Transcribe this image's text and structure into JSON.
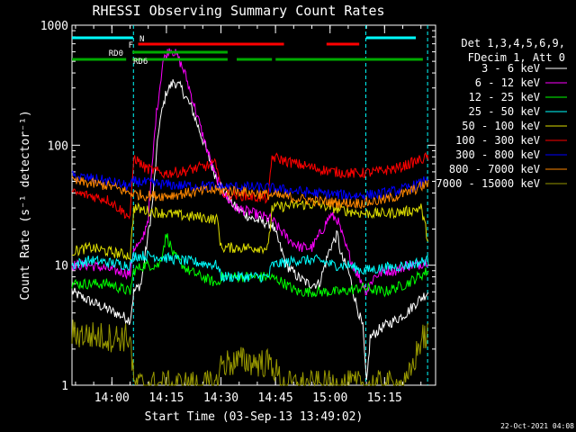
{
  "chart_data": {
    "type": "line",
    "title": "RHESSI Observing Summary Count Rates",
    "xlabel": "Start Time (03-Sep-13 13:49:02)",
    "ylabel": "Count Rate (s⁻¹ detector⁻¹)",
    "yscale": "log",
    "ylim": [
      1,
      1000
    ],
    "xlim_minutes_from_start": [
      0,
      100
    ],
    "x_ticks": [
      {
        "label": "14:00",
        "minute": 10.97
      },
      {
        "label": "14:15",
        "minute": 25.97
      },
      {
        "label": "14:30",
        "minute": 40.97
      },
      {
        "label": "14:45",
        "minute": 55.97
      },
      {
        "label": "15:00",
        "minute": 70.97
      },
      {
        "label": "15:15",
        "minute": 85.97
      }
    ],
    "y_ticks": [
      {
        "label": "1",
        "value": 1
      },
      {
        "label": "10",
        "value": 10
      },
      {
        "label": "100",
        "value": 100
      },
      {
        "label": "1000",
        "value": 1000
      }
    ],
    "legend_header": [
      "Det 1,3,4,5,6,9,",
      "FDecim 1, Att 0"
    ],
    "legend_position": "right",
    "series": [
      {
        "name": "3 - 6 keV",
        "color": "#ffffff",
        "points": [
          [
            0,
            6
          ],
          [
            5,
            5
          ],
          [
            12,
            4
          ],
          [
            16,
            3.5
          ],
          [
            17,
            6
          ],
          [
            19,
            7
          ],
          [
            22,
            30
          ],
          [
            24,
            150
          ],
          [
            26,
            280
          ],
          [
            28,
            340
          ],
          [
            30,
            300
          ],
          [
            33,
            200
          ],
          [
            36,
            110
          ],
          [
            39,
            60
          ],
          [
            42,
            40
          ],
          [
            45,
            30
          ],
          [
            50,
            24
          ],
          [
            55,
            22
          ],
          [
            57,
            15
          ],
          [
            59,
            10
          ],
          [
            62,
            8
          ],
          [
            65,
            7
          ],
          [
            68,
            7
          ],
          [
            71,
            14
          ],
          [
            73,
            18
          ],
          [
            74,
            12
          ],
          [
            76,
            9
          ],
          [
            78,
            5
          ],
          [
            80,
            3
          ],
          [
            81,
            1
          ],
          [
            82,
            2.5
          ],
          [
            85,
            3
          ],
          [
            89,
            3.5
          ],
          [
            92,
            4
          ],
          [
            95,
            5
          ],
          [
            98,
            6
          ]
        ]
      },
      {
        "name": "6 - 12 keV",
        "color": "#ff00ff",
        "points": [
          [
            0,
            10
          ],
          [
            5,
            10
          ],
          [
            12,
            9
          ],
          [
            16,
            8.5
          ],
          [
            17,
            14
          ],
          [
            19,
            15
          ],
          [
            21,
            25
          ],
          [
            23,
            160
          ],
          [
            25,
            500
          ],
          [
            27,
            650
          ],
          [
            29,
            550
          ],
          [
            31,
            400
          ],
          [
            33,
            250
          ],
          [
            36,
            120
          ],
          [
            39,
            60
          ],
          [
            42,
            38
          ],
          [
            45,
            30
          ],
          [
            50,
            27
          ],
          [
            55,
            24
          ],
          [
            57,
            20
          ],
          [
            60,
            16
          ],
          [
            63,
            14
          ],
          [
            66,
            14
          ],
          [
            69,
            20
          ],
          [
            71,
            26
          ],
          [
            73,
            24
          ],
          [
            75,
            15
          ],
          [
            78,
            9
          ],
          [
            80,
            7
          ],
          [
            81,
            6
          ],
          [
            83,
            8
          ],
          [
            86,
            9
          ],
          [
            89,
            9
          ],
          [
            92,
            10
          ],
          [
            95,
            10
          ],
          [
            98,
            11
          ]
        ]
      },
      {
        "name": "12 - 25 keV",
        "color": "#00ff00",
        "points": [
          [
            0,
            7
          ],
          [
            5,
            7
          ],
          [
            10,
            7
          ],
          [
            16,
            6
          ],
          [
            17,
            9
          ],
          [
            20,
            10
          ],
          [
            24,
            10
          ],
          [
            26,
            18
          ],
          [
            28,
            12
          ],
          [
            32,
            9
          ],
          [
            40,
            7
          ],
          [
            41,
            8
          ],
          [
            47,
            8
          ],
          [
            54,
            8
          ],
          [
            57,
            7.5
          ],
          [
            62,
            6
          ],
          [
            68,
            6
          ],
          [
            74,
            6
          ],
          [
            80,
            6.5
          ],
          [
            86,
            6
          ],
          [
            92,
            7
          ],
          [
            98,
            9
          ]
        ]
      },
      {
        "name": "25 - 50 keV",
        "color": "#00ffff",
        "points": [
          [
            0,
            10
          ],
          [
            5,
            11
          ],
          [
            10,
            10.5
          ],
          [
            16,
            10
          ],
          [
            17,
            12
          ],
          [
            22,
            12
          ],
          [
            30,
            11
          ],
          [
            40,
            10
          ],
          [
            41,
            8
          ],
          [
            47,
            8
          ],
          [
            54,
            8
          ],
          [
            55,
            10
          ],
          [
            62,
            11
          ],
          [
            68,
            11
          ],
          [
            72,
            10
          ],
          [
            76,
            10
          ],
          [
            80,
            9
          ],
          [
            86,
            9.5
          ],
          [
            92,
            10
          ],
          [
            98,
            11
          ]
        ]
      },
      {
        "name": "50 - 100 keV",
        "color": "#dddd00",
        "points": [
          [
            0,
            13
          ],
          [
            5,
            14
          ],
          [
            10,
            13
          ],
          [
            16,
            12
          ],
          [
            17,
            30
          ],
          [
            22,
            28
          ],
          [
            30,
            26
          ],
          [
            36,
            25
          ],
          [
            40,
            24
          ],
          [
            41,
            14
          ],
          [
            47,
            14
          ],
          [
            54,
            14
          ],
          [
            55,
            30
          ],
          [
            62,
            32
          ],
          [
            68,
            32
          ],
          [
            74,
            29
          ],
          [
            80,
            27
          ],
          [
            86,
            27
          ],
          [
            92,
            28
          ],
          [
            96,
            30
          ],
          [
            98,
            16
          ]
        ]
      },
      {
        "name": "100 - 300 keV",
        "color": "#ff0000",
        "points": [
          [
            0,
            40
          ],
          [
            5,
            38
          ],
          [
            10,
            35
          ],
          [
            16,
            25
          ],
          [
            17,
            80
          ],
          [
            20,
            65
          ],
          [
            25,
            58
          ],
          [
            30,
            60
          ],
          [
            35,
            65
          ],
          [
            40,
            70
          ],
          [
            41,
            40
          ],
          [
            47,
            38
          ],
          [
            54,
            36
          ],
          [
            55,
            80
          ],
          [
            60,
            72
          ],
          [
            66,
            65
          ],
          [
            72,
            60
          ],
          [
            78,
            58
          ],
          [
            84,
            60
          ],
          [
            90,
            65
          ],
          [
            98,
            80
          ]
        ]
      },
      {
        "name": "300 - 800 keV",
        "color": "#0000ff",
        "points": [
          [
            0,
            55
          ],
          [
            5,
            53
          ],
          [
            10,
            50
          ],
          [
            16,
            45
          ],
          [
            17,
            50
          ],
          [
            22,
            48
          ],
          [
            30,
            46
          ],
          [
            36,
            46
          ],
          [
            40,
            45
          ],
          [
            47,
            45
          ],
          [
            54,
            44
          ],
          [
            60,
            42
          ],
          [
            66,
            40
          ],
          [
            72,
            39
          ],
          [
            78,
            38
          ],
          [
            84,
            39
          ],
          [
            90,
            42
          ],
          [
            96,
            48
          ],
          [
            98,
            55
          ]
        ]
      },
      {
        "name": "800 - 7000 keV",
        "color": "#ff8800",
        "points": [
          [
            0,
            50
          ],
          [
            5,
            48
          ],
          [
            10,
            46
          ],
          [
            16,
            40
          ],
          [
            20,
            38
          ],
          [
            26,
            38
          ],
          [
            32,
            40
          ],
          [
            38,
            42
          ],
          [
            44,
            42
          ],
          [
            50,
            40
          ],
          [
            56,
            38
          ],
          [
            62,
            36
          ],
          [
            68,
            34
          ],
          [
            74,
            33
          ],
          [
            80,
            33
          ],
          [
            86,
            35
          ],
          [
            92,
            40
          ],
          [
            98,
            48
          ]
        ]
      },
      {
        "name": "7000 - 15000 keV",
        "color": "#999900",
        "points": [
          [
            0,
            2.7
          ],
          [
            5,
            2.6
          ],
          [
            10,
            2.5
          ],
          [
            16,
            2.5
          ],
          [
            17,
            1
          ],
          [
            40,
            1
          ],
          [
            41,
            1.5
          ],
          [
            47,
            1.6
          ],
          [
            55,
            1.5
          ],
          [
            58,
            1
          ],
          [
            92,
            1
          ],
          [
            96,
            2.4
          ],
          [
            98,
            2.6
          ]
        ]
      }
    ],
    "annotations": {
      "vertical_dashed_minutes": [
        16.9,
        80.8,
        97.8
      ],
      "flag_lines": [
        {
          "label": "N",
          "color": "#00ffff",
          "segments": [
            [
              -3,
              16.8
            ],
            [
              80.9,
              97.8
            ]
          ]
        },
        {
          "label": "F",
          "color": "#ff0000",
          "segments": [
            [
              18.2,
              58.3
            ],
            [
              70.0,
              79.0
            ]
          ]
        },
        {
          "label": "RD0",
          "color": "#00aa00",
          "segments": [
            [
              16.6,
              42.8
            ]
          ]
        },
        {
          "label": "RD6",
          "color": "#00aa00",
          "segments": [
            [
              -3,
              14.9
            ],
            [
              16.6,
              42.8
            ],
            [
              45.3,
              55.0
            ],
            [
              56.0,
              96.0
            ],
            [
              96.5,
              100
            ]
          ]
        }
      ]
    }
  },
  "footer": {
    "timestamp": "22-Oct-2021 04:08"
  }
}
